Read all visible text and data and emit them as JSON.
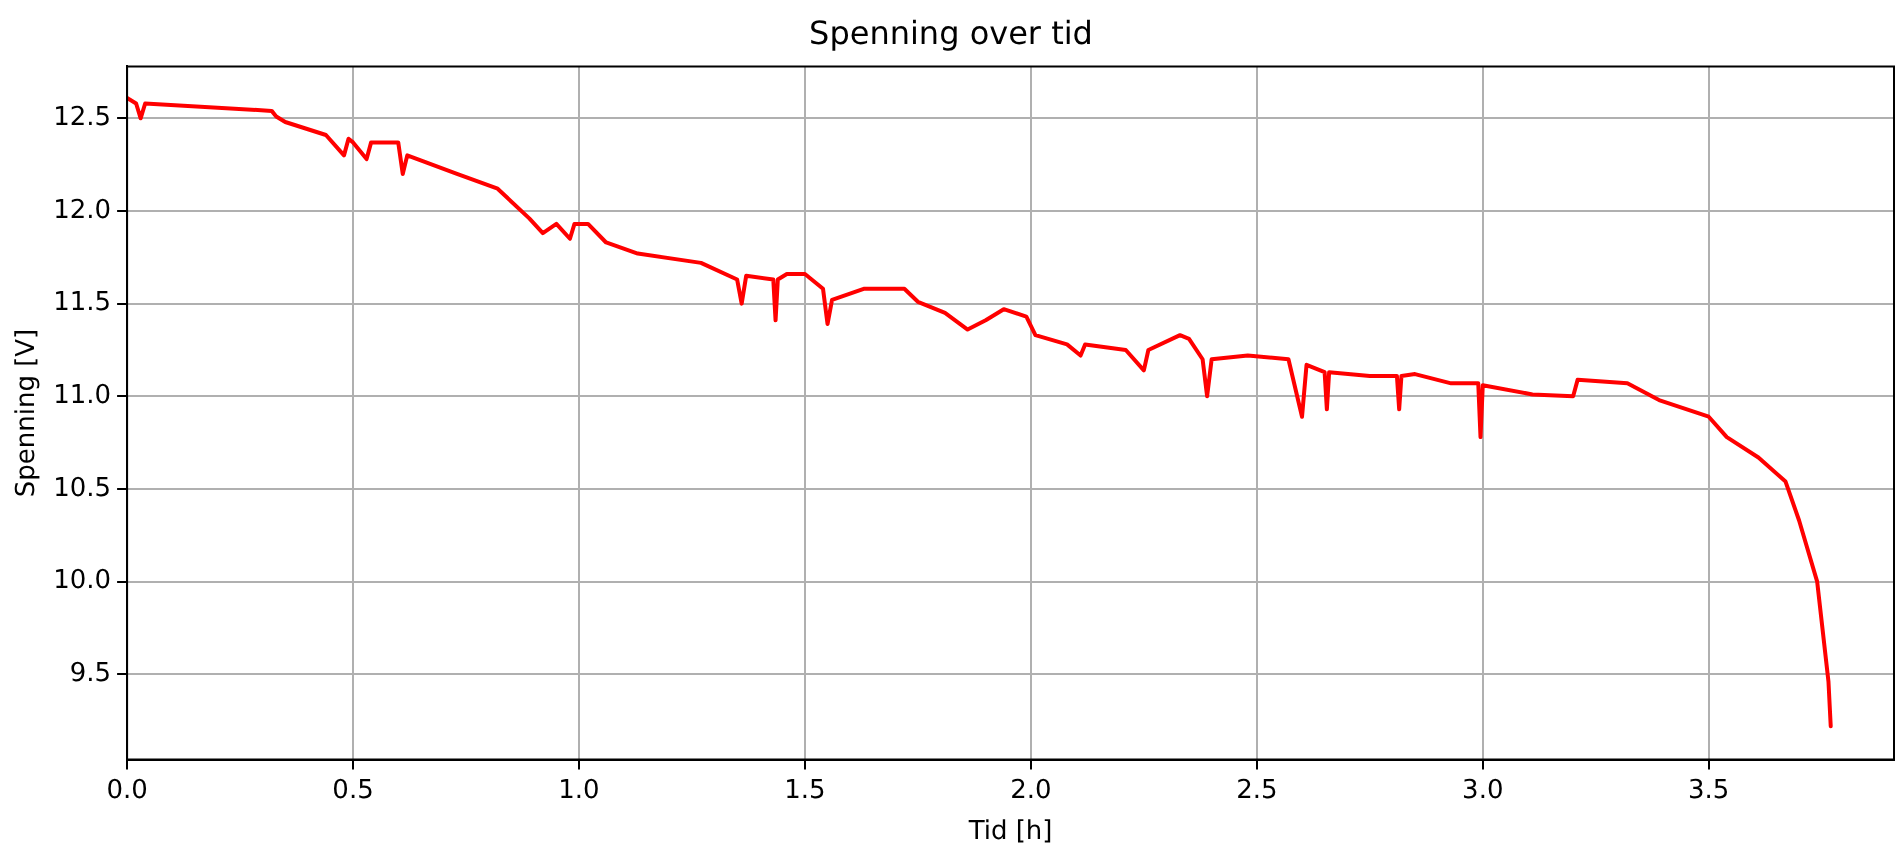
{
  "chart_data": {
    "type": "line",
    "title": "Spenning over tid",
    "xlabel": "Tid [h]",
    "ylabel": "Spenning [V]",
    "xlim": [
      0,
      3.91
    ],
    "ylim": [
      9.04,
      12.78
    ],
    "xticks": [
      {
        "value": 0,
        "label": "0.0"
      },
      0.5,
      {
        "value": 1,
        "label": "1.0"
      },
      1.5,
      {
        "value": 2,
        "label": "2.0"
      },
      2.5,
      {
        "value": 3,
        "label": "3.0"
      },
      3.5
    ],
    "yticks": [
      9.5,
      {
        "value": 10,
        "label": "10.0"
      },
      10.5,
      {
        "value": 11,
        "label": "11.0"
      },
      11.5,
      {
        "value": 12,
        "label": "12.0"
      },
      12.5
    ],
    "grid": true,
    "legend": false,
    "marker": "none",
    "line_style": "solid",
    "series": [
      {
        "color": "#ff0000",
        "x": [
          0,
          0.02,
          0.03,
          0.04,
          0.32,
          0.33,
          0.35,
          0.44,
          0.48,
          0.49,
          0.5,
          0.53,
          0.54,
          0.6,
          0.61,
          0.62,
          0.73,
          0.82,
          0.89,
          0.92,
          0.95,
          0.98,
          0.99,
          1.02,
          1.06,
          1.13,
          1.27,
          1.35,
          1.36,
          1.37,
          1.43,
          1.435,
          1.44,
          1.46,
          1.5,
          1.54,
          1.55,
          1.56,
          1.63,
          1.72,
          1.75,
          1.81,
          1.86,
          1.9,
          1.94,
          1.99,
          2.01,
          2.08,
          2.11,
          2.12,
          2.21,
          2.25,
          2.26,
          2.33,
          2.35,
          2.38,
          2.39,
          2.4,
          2.48,
          2.57,
          2.6,
          2.61,
          2.65,
          2.655,
          2.66,
          2.75,
          2.81,
          2.815,
          2.82,
          2.85,
          2.93,
          2.99,
          2.995,
          3.0,
          3.11,
          3.2,
          3.21,
          3.32,
          3.39,
          3.5,
          3.54,
          3.61,
          3.67,
          3.7,
          3.74,
          3.765,
          3.77
        ],
        "values": [
          12.61,
          12.58,
          12.5,
          12.58,
          12.54,
          12.51,
          12.48,
          12.41,
          12.3,
          12.39,
          12.37,
          12.28,
          12.37,
          12.37,
          12.2,
          12.3,
          12.2,
          12.12,
          11.96,
          11.88,
          11.93,
          11.85,
          11.93,
          11.93,
          11.83,
          11.77,
          11.72,
          11.63,
          11.5,
          11.65,
          11.63,
          11.41,
          11.63,
          11.66,
          11.66,
          11.58,
          11.39,
          11.52,
          11.58,
          11.58,
          11.51,
          11.45,
          11.36,
          11.41,
          11.47,
          11.43,
          11.33,
          11.28,
          11.22,
          11.28,
          11.25,
          11.14,
          11.25,
          11.33,
          11.31,
          11.2,
          11.0,
          11.2,
          11.22,
          11.2,
          10.89,
          11.17,
          11.13,
          10.93,
          11.13,
          11.11,
          11.11,
          10.93,
          11.11,
          11.12,
          11.07,
          11.07,
          10.78,
          11.06,
          11.01,
          11.0,
          11.09,
          11.07,
          10.98,
          10.89,
          10.78,
          10.67,
          10.54,
          10.33,
          10.0,
          9.46,
          9.22
        ]
      }
    ]
  }
}
